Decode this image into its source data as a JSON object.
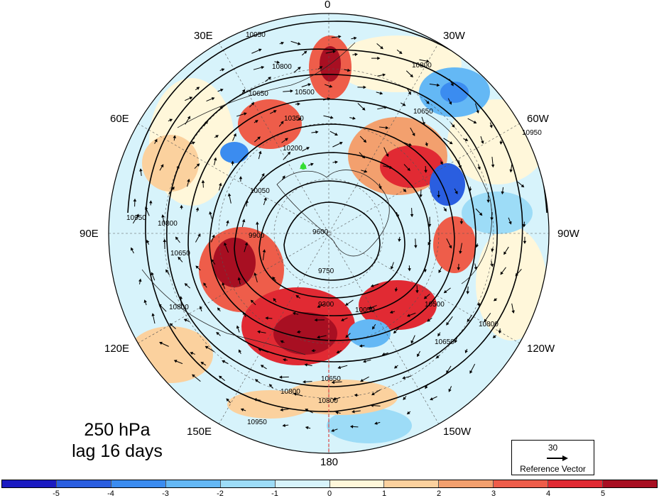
{
  "title": {
    "line1": "250 hPa",
    "line2": "lag 16 days"
  },
  "longitude_labels": {
    "top": "0",
    "upper_left": "30E",
    "upper_right": "30W",
    "left_upper": "60E",
    "right_upper": "60W",
    "left": "90E",
    "right": "90W",
    "left_lower": "120E",
    "right_lower": "120W",
    "lower_left": "150E",
    "lower_right": "150W",
    "bottom": "180"
  },
  "contour_labels": [
    "10950",
    "10800",
    "10650",
    "10500",
    "10350",
    "10200",
    "10050",
    "9900",
    "9750",
    "9600",
    "9300"
  ],
  "reference_vector": {
    "value": "30",
    "label": "Reference Vector"
  },
  "colorbar": {
    "ticks": [
      "-5",
      "-4",
      "-3",
      "-2",
      "-1",
      "0",
      "1",
      "2",
      "3",
      "4",
      "5"
    ],
    "colors": [
      "#1b1bc2",
      "#2a5ee0",
      "#3b8cf0",
      "#64b8f5",
      "#9ddcf7",
      "#d7f3fb",
      "#fff7da",
      "#fbd19e",
      "#f3a06e",
      "#ee5d4a",
      "#e12a33",
      "#a80f22"
    ]
  },
  "marker_color": "#33dd33"
}
